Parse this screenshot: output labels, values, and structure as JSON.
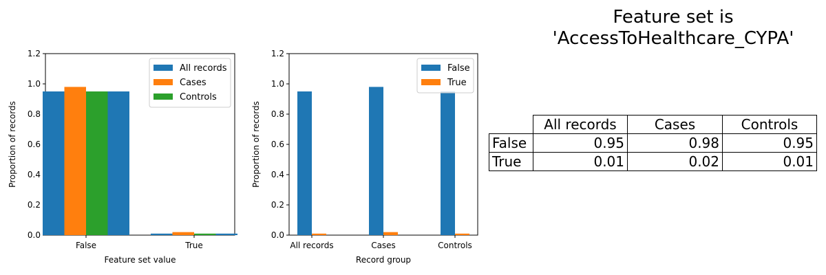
{
  "title_lines": [
    "Feature set is",
    "'AccessToHealthcare_CYPA'"
  ],
  "colors": {
    "blue": "#1f77b4",
    "orange": "#ff7f0e",
    "green": "#2ca02c"
  },
  "chart_data": [
    {
      "type": "bar",
      "categories": [
        "False",
        "True"
      ],
      "series": [
        {
          "name": "All records",
          "values": [
            0.95,
            0.01
          ]
        },
        {
          "name": "Cases",
          "values": [
            0.98,
            0.02
          ]
        },
        {
          "name": "Controls",
          "values": [
            0.95,
            0.01
          ]
        },
        {
          "name": "",
          "values": [
            0.95,
            0.01
          ]
        }
      ],
      "xlabel": "Feature set value",
      "ylabel": "Proportion of records",
      "ylim": [
        0,
        1.2
      ],
      "yticks": [
        "0.0",
        "0.2",
        "0.4",
        "0.6",
        "0.8",
        "1.0",
        "1.2"
      ],
      "legend": [
        "All records",
        "Cases",
        "Controls"
      ],
      "legend_position": "top-right"
    },
    {
      "type": "bar",
      "categories": [
        "All records",
        "Cases",
        "Controls"
      ],
      "series": [
        {
          "name": "False",
          "values": [
            0.95,
            0.98,
            0.95
          ]
        },
        {
          "name": "True",
          "values": [
            0.01,
            0.02,
            0.01
          ]
        }
      ],
      "xlabel": "Record group",
      "ylabel": "Proportion of records",
      "ylim": [
        0,
        1.2
      ],
      "yticks": [
        "0.0",
        "0.2",
        "0.4",
        "0.6",
        "0.8",
        "1.0",
        "1.2"
      ],
      "legend": [
        "False",
        "True"
      ],
      "legend_position": "top-right"
    }
  ],
  "table": {
    "columns": [
      "All records",
      "Cases",
      "Controls"
    ],
    "rows": [
      {
        "label": "False",
        "values": [
          "0.95",
          "0.98",
          "0.95"
        ]
      },
      {
        "label": "True",
        "values": [
          "0.01",
          "0.02",
          "0.01"
        ]
      }
    ]
  }
}
